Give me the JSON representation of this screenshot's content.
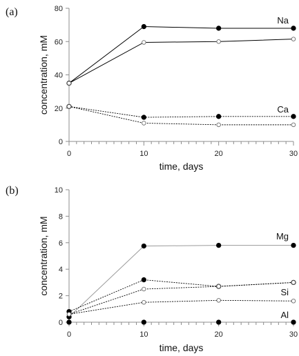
{
  "chart_data": [
    {
      "type": "line",
      "panel_label": "(a)",
      "xlabel": "time, days",
      "ylabel": "concentration, mM",
      "xlim": [
        0,
        30
      ],
      "ylim": [
        0,
        80
      ],
      "xticks": [
        0,
        10,
        20,
        30
      ],
      "yticks": [
        0,
        20,
        40,
        60,
        80
      ],
      "series": [
        {
          "label": "Na",
          "marker": "filled",
          "line": "solid",
          "color": "#000000",
          "x": [
            0,
            10,
            20,
            30
          ],
          "y": [
            35,
            69,
            68,
            68
          ]
        },
        {
          "label": "",
          "marker": "open",
          "line": "solid",
          "color": "#000000",
          "x": [
            0,
            10,
            20,
            30
          ],
          "y": [
            35,
            59.5,
            60,
            61.5
          ]
        },
        {
          "label": "Ca",
          "marker": "filled",
          "line": "dotted",
          "color": "#000000",
          "x": [
            0,
            10,
            20,
            30
          ],
          "y": [
            21,
            14.5,
            15,
            15
          ]
        },
        {
          "label": "",
          "marker": "open",
          "line": "dotted",
          "color": "#000000",
          "x": [
            0,
            10,
            20,
            30
          ],
          "y": [
            21,
            11,
            10,
            10
          ]
        }
      ]
    },
    {
      "type": "line",
      "panel_label": "(b)",
      "xlabel": "time, days",
      "ylabel": "concentration, mM",
      "xlim": [
        0,
        30
      ],
      "ylim": [
        0,
        10
      ],
      "xticks": [
        0,
        10,
        20,
        30
      ],
      "yticks": [
        0,
        2,
        4,
        6,
        8,
        10
      ],
      "series": [
        {
          "label": "Mg",
          "marker": "filled",
          "line": "solid-gray",
          "color": "#9a9a9a",
          "x": [
            0,
            10,
            20,
            30
          ],
          "y": [
            0.4,
            5.75,
            5.8,
            5.8
          ]
        },
        {
          "label": "",
          "marker": "filled",
          "line": "dotted",
          "color": "#000000",
          "x": [
            0,
            10,
            20,
            30
          ],
          "y": [
            0.8,
            3.2,
            2.7,
            3.0
          ]
        },
        {
          "label": "Si",
          "marker": "open",
          "line": "dotted",
          "color": "#000000",
          "x": [
            0,
            10,
            20,
            30
          ],
          "y": [
            0.6,
            2.5,
            2.7,
            3.0
          ]
        },
        {
          "label": "",
          "marker": "open",
          "line": "dotted",
          "color": "#000000",
          "x": [
            0,
            10,
            20,
            30
          ],
          "y": [
            0.6,
            1.5,
            1.65,
            1.6
          ]
        },
        {
          "label": "Al",
          "marker": "filled",
          "line": "none",
          "color": "#000000",
          "x": [
            0,
            10,
            20,
            30
          ],
          "y": [
            0,
            0,
            0,
            0
          ]
        }
      ]
    }
  ]
}
